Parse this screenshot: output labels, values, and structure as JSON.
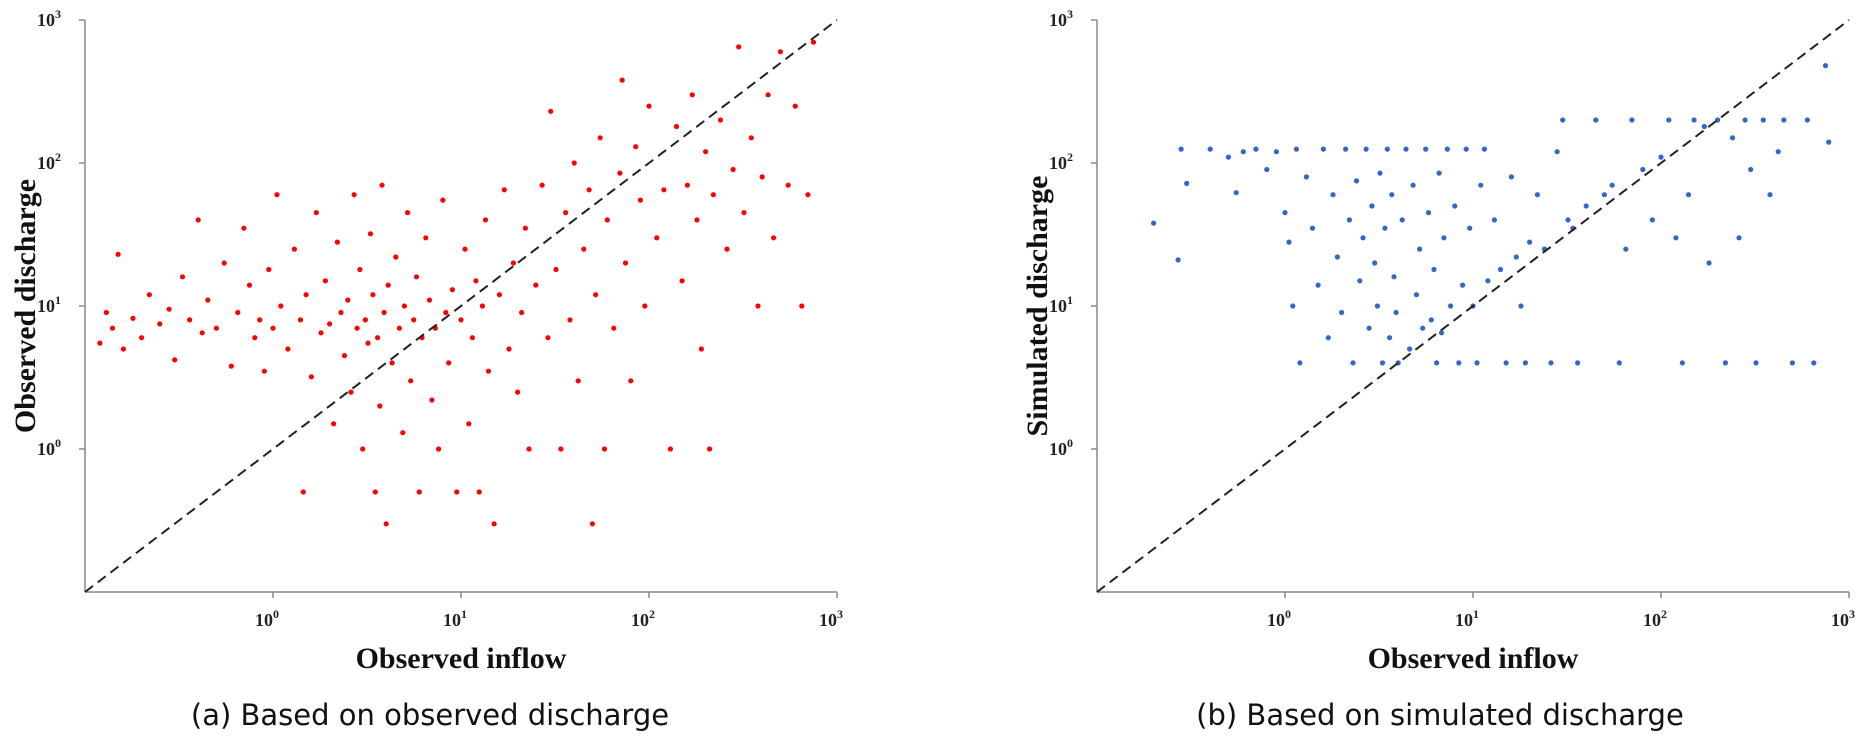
{
  "chart_data": [
    {
      "type": "scatter",
      "panel_label": "(a) Based on observed discharge",
      "xlabel": "Observed inflow",
      "ylabel": "Observed discharge",
      "x_scale": "log",
      "y_scale": "log",
      "xlim": [
        0.1,
        1000
      ],
      "ylim": [
        0.1,
        1000
      ],
      "x_ticks": [
        1,
        10,
        100,
        1000
      ],
      "y_ticks": [
        1,
        10,
        100,
        1000
      ],
      "tick_base": "10",
      "x_tick_exponents": [
        "0",
        "1",
        "2",
        "3"
      ],
      "y_tick_exponents": [
        "0",
        "1",
        "2",
        "3"
      ],
      "grid": false,
      "reference_line": "1:1 dashed",
      "point_color": "#ff0000",
      "points": [
        [
          0.12,
          5.5
        ],
        [
          0.13,
          9
        ],
        [
          0.14,
          7
        ],
        [
          0.15,
          23
        ],
        [
          0.16,
          5
        ],
        [
          0.18,
          8.2
        ],
        [
          0.2,
          6
        ],
        [
          0.22,
          12
        ],
        [
          0.25,
          7.5
        ],
        [
          0.28,
          9.5
        ],
        [
          0.3,
          4.2
        ],
        [
          0.33,
          16
        ],
        [
          0.36,
          8
        ],
        [
          0.4,
          40
        ],
        [
          0.42,
          6.5
        ],
        [
          0.45,
          11
        ],
        [
          0.5,
          7
        ],
        [
          0.55,
          20
        ],
        [
          0.6,
          3.8
        ],
        [
          0.65,
          9
        ],
        [
          0.7,
          35
        ],
        [
          0.75,
          14
        ],
        [
          0.8,
          6
        ],
        [
          0.85,
          8
        ],
        [
          0.9,
          3.5
        ],
        [
          0.95,
          18
        ],
        [
          1.0,
          7
        ],
        [
          1.05,
          60
        ],
        [
          1.1,
          10
        ],
        [
          1.2,
          5
        ],
        [
          1.3,
          25
        ],
        [
          1.4,
          8
        ],
        [
          1.45,
          0.5
        ],
        [
          1.5,
          12
        ],
        [
          1.6,
          3.2
        ],
        [
          1.7,
          45
        ],
        [
          1.8,
          6.5
        ],
        [
          1.9,
          15
        ],
        [
          2.0,
          7.5
        ],
        [
          2.1,
          1.5
        ],
        [
          2.2,
          28
        ],
        [
          2.3,
          9
        ],
        [
          2.4,
          4.5
        ],
        [
          2.5,
          11
        ],
        [
          2.6,
          2.5
        ],
        [
          2.7,
          60
        ],
        [
          2.8,
          7
        ],
        [
          2.9,
          18
        ],
        [
          3.0,
          1.0
        ],
        [
          3.1,
          8
        ],
        [
          3.2,
          5.5
        ],
        [
          3.3,
          32
        ],
        [
          3.4,
          12
        ],
        [
          3.5,
          0.5
        ],
        [
          3.6,
          6
        ],
        [
          3.7,
          2
        ],
        [
          3.8,
          70
        ],
        [
          3.9,
          9
        ],
        [
          4.0,
          0.3
        ],
        [
          4.1,
          14
        ],
        [
          4.3,
          4
        ],
        [
          4.5,
          22
        ],
        [
          4.7,
          7
        ],
        [
          4.9,
          1.3
        ],
        [
          5.0,
          10
        ],
        [
          5.2,
          45
        ],
        [
          5.4,
          3
        ],
        [
          5.6,
          8
        ],
        [
          5.8,
          16
        ],
        [
          6.0,
          0.5
        ],
        [
          6.2,
          6
        ],
        [
          6.5,
          30
        ],
        [
          6.8,
          11
        ],
        [
          7.0,
          2.2
        ],
        [
          7.3,
          7
        ],
        [
          7.6,
          1.0
        ],
        [
          8.0,
          55
        ],
        [
          8.3,
          9
        ],
        [
          8.6,
          4
        ],
        [
          9.0,
          13
        ],
        [
          9.5,
          0.5
        ],
        [
          10,
          8
        ],
        [
          10.5,
          25
        ],
        [
          11,
          1.5
        ],
        [
          11.5,
          6
        ],
        [
          12,
          15
        ],
        [
          12.5,
          0.5
        ],
        [
          13,
          10
        ],
        [
          13.5,
          40
        ],
        [
          14,
          3.5
        ],
        [
          15,
          0.3
        ],
        [
          16,
          12
        ],
        [
          17,
          65
        ],
        [
          18,
          5
        ],
        [
          19,
          20
        ],
        [
          20,
          2.5
        ],
        [
          21,
          9
        ],
        [
          22,
          35
        ],
        [
          23,
          1.0
        ],
        [
          25,
          14
        ],
        [
          27,
          70
        ],
        [
          29,
          6
        ],
        [
          30,
          230
        ],
        [
          32,
          18
        ],
        [
          34,
          1.0
        ],
        [
          36,
          45
        ],
        [
          38,
          8
        ],
        [
          40,
          100
        ],
        [
          42,
          3
        ],
        [
          45,
          25
        ],
        [
          48,
          65
        ],
        [
          50,
          0.3
        ],
        [
          52,
          12
        ],
        [
          55,
          150
        ],
        [
          58,
          1.0
        ],
        [
          60,
          40
        ],
        [
          65,
          7
        ],
        [
          70,
          85
        ],
        [
          72,
          380
        ],
        [
          75,
          20
        ],
        [
          80,
          3
        ],
        [
          85,
          130
        ],
        [
          90,
          55
        ],
        [
          95,
          10
        ],
        [
          100,
          250
        ],
        [
          110,
          30
        ],
        [
          120,
          65
        ],
        [
          130,
          1.0
        ],
        [
          140,
          180
        ],
        [
          150,
          15
        ],
        [
          160,
          70
        ],
        [
          170,
          300
        ],
        [
          180,
          40
        ],
        [
          190,
          5
        ],
        [
          200,
          120
        ],
        [
          210,
          1.0
        ],
        [
          220,
          60
        ],
        [
          240,
          200
        ],
        [
          260,
          25
        ],
        [
          280,
          90
        ],
        [
          300,
          650
        ],
        [
          320,
          45
        ],
        [
          350,
          150
        ],
        [
          380,
          10
        ],
        [
          400,
          80
        ],
        [
          430,
          300
        ],
        [
          460,
          30
        ],
        [
          500,
          600
        ],
        [
          550,
          70
        ],
        [
          600,
          250
        ],
        [
          650,
          10
        ],
        [
          700,
          60
        ],
        [
          750,
          700
        ]
      ]
    },
    {
      "type": "scatter",
      "panel_label": "(b) Based on simulated discharge",
      "xlabel": "Observed inflow",
      "ylabel": "Simulated discharge",
      "x_scale": "log",
      "y_scale": "log",
      "xlim": [
        0.1,
        1000
      ],
      "ylim": [
        0.1,
        1000
      ],
      "x_ticks": [
        1,
        10,
        100,
        1000
      ],
      "y_ticks": [
        1,
        10,
        100,
        1000
      ],
      "tick_base": "10",
      "x_tick_exponents": [
        "0",
        "1",
        "2",
        "3"
      ],
      "y_tick_exponents": [
        "0",
        "1",
        "2",
        "3"
      ],
      "grid": false,
      "reference_line": "1:1 dashed",
      "point_color": "#3366cc",
      "points": [
        [
          0.2,
          38
        ],
        [
          0.27,
          21
        ],
        [
          0.28,
          125
        ],
        [
          0.3,
          72
        ],
        [
          0.4,
          125
        ],
        [
          0.5,
          110
        ],
        [
          0.55,
          62
        ],
        [
          0.6,
          120
        ],
        [
          0.7,
          125
        ],
        [
          0.8,
          90
        ],
        [
          0.9,
          120
        ],
        [
          1.0,
          45
        ],
        [
          1.05,
          28
        ],
        [
          1.1,
          10
        ],
        [
          1.15,
          125
        ],
        [
          1.2,
          4
        ],
        [
          1.3,
          80
        ],
        [
          1.4,
          35
        ],
        [
          1.5,
          14
        ],
        [
          1.6,
          125
        ],
        [
          1.7,
          6
        ],
        [
          1.8,
          60
        ],
        [
          1.9,
          22
        ],
        [
          2.0,
          9
        ],
        [
          2.1,
          125
        ],
        [
          2.2,
          40
        ],
        [
          2.3,
          4
        ],
        [
          2.4,
          75
        ],
        [
          2.5,
          15
        ],
        [
          2.6,
          30
        ],
        [
          2.7,
          125
        ],
        [
          2.8,
          7
        ],
        [
          2.9,
          50
        ],
        [
          3.0,
          20
        ],
        [
          3.1,
          10
        ],
        [
          3.2,
          85
        ],
        [
          3.3,
          4
        ],
        [
          3.4,
          35
        ],
        [
          3.5,
          125
        ],
        [
          3.6,
          6
        ],
        [
          3.7,
          60
        ],
        [
          3.8,
          16
        ],
        [
          3.9,
          9
        ],
        [
          4.0,
          4
        ],
        [
          4.2,
          40
        ],
        [
          4.4,
          125
        ],
        [
          4.6,
          5
        ],
        [
          4.8,
          70
        ],
        [
          5.0,
          12
        ],
        [
          5.2,
          25
        ],
        [
          5.4,
          7
        ],
        [
          5.6,
          125
        ],
        [
          5.8,
          45
        ],
        [
          6.0,
          8
        ],
        [
          6.2,
          18
        ],
        [
          6.4,
          4
        ],
        [
          6.6,
          85
        ],
        [
          6.8,
          6.5
        ],
        [
          7.0,
          30
        ],
        [
          7.3,
          125
        ],
        [
          7.6,
          10
        ],
        [
          8.0,
          50
        ],
        [
          8.4,
          4
        ],
        [
          8.8,
          14
        ],
        [
          9.2,
          125
        ],
        [
          9.6,
          35
        ],
        [
          10,
          10
        ],
        [
          10.5,
          4
        ],
        [
          11,
          70
        ],
        [
          11.5,
          125
        ],
        [
          12,
          15
        ],
        [
          13,
          40
        ],
        [
          14,
          18
        ],
        [
          15,
          4
        ],
        [
          16,
          80
        ],
        [
          17,
          22
        ],
        [
          18,
          10
        ],
        [
          19,
          4
        ],
        [
          20,
          28
        ],
        [
          22,
          60
        ],
        [
          24,
          25
        ],
        [
          26,
          4
        ],
        [
          28,
          120
        ],
        [
          30,
          200
        ],
        [
          32,
          40
        ],
        [
          34,
          35
        ],
        [
          36,
          4
        ],
        [
          40,
          50
        ],
        [
          45,
          200
        ],
        [
          50,
          60
        ],
        [
          55,
          70
        ],
        [
          60,
          4
        ],
        [
          65,
          25
        ],
        [
          70,
          200
        ],
        [
          80,
          90
        ],
        [
          90,
          40
        ],
        [
          100,
          110
        ],
        [
          110,
          200
        ],
        [
          120,
          30
        ],
        [
          130,
          4
        ],
        [
          140,
          60
        ],
        [
          150,
          200
        ],
        [
          170,
          180
        ],
        [
          180,
          20
        ],
        [
          200,
          200
        ],
        [
          220,
          4
        ],
        [
          240,
          150
        ],
        [
          260,
          30
        ],
        [
          280,
          200
        ],
        [
          300,
          90
        ],
        [
          320,
          4
        ],
        [
          350,
          200
        ],
        [
          380,
          60
        ],
        [
          420,
          120
        ],
        [
          450,
          200
        ],
        [
          500,
          4
        ],
        [
          600,
          200
        ],
        [
          650,
          4
        ],
        [
          750,
          480
        ],
        [
          780,
          140
        ]
      ]
    }
  ]
}
